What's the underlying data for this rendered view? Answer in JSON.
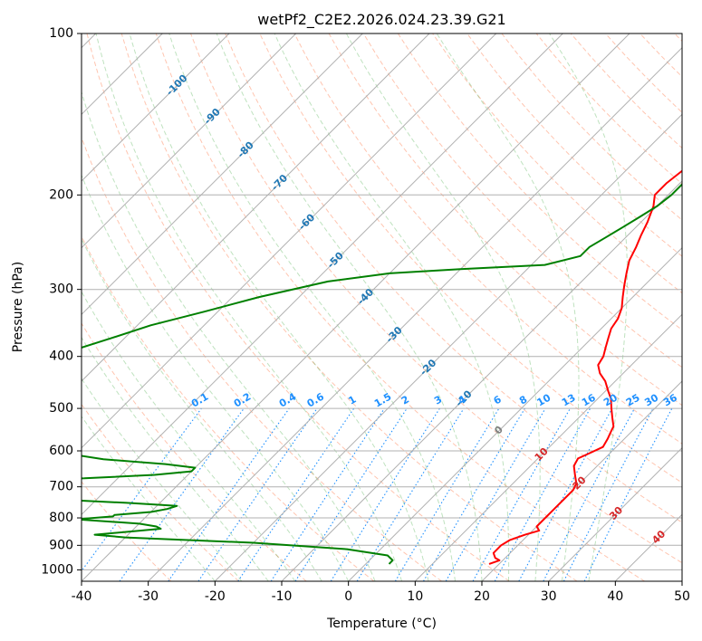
{
  "chart_data": {
    "type": "line",
    "title": "wetPf2_C2E2.2026.024.23.39.G21",
    "xlabel": "Temperature (°C)",
    "ylabel": "Pressure (hPa)",
    "xlim": [
      -40,
      50
    ],
    "ylim": [
      1050,
      100
    ],
    "y_scale": "log",
    "skew": "skew-T",
    "x_ticks": [
      -40,
      -30,
      -20,
      -10,
      0,
      10,
      20,
      30,
      40,
      50
    ],
    "y_ticks": [
      100,
      200,
      300,
      400,
      500,
      600,
      700,
      800,
      900,
      1000
    ],
    "grid": true,
    "isotherm_labels": [
      "-100",
      "-90",
      "-80",
      "-70",
      "-60",
      "-50",
      "-40",
      "-30",
      "-20",
      "-10",
      "0",
      "10",
      "20",
      "30",
      "40"
    ],
    "mixing_ratio_labels": [
      "0.1",
      "0.2",
      "0.4",
      "0.6",
      "1",
      "1.5",
      "2",
      "3",
      "4",
      "6",
      "8",
      "10",
      "13",
      "16",
      "20",
      "25",
      "30",
      "36"
    ],
    "colors": {
      "temperature": "#ff0000",
      "dewpoint": "#008000",
      "isotherm_label_cold": "#1f77b4",
      "isotherm_label_zero": "#808080",
      "isotherm_label_warm": "#d62728",
      "mixing_ratio": "#1e90ff",
      "dry_adiabat": "#ff7f50",
      "moist_adiabat": "#2ca02c",
      "grid": "#b0b0b0"
    },
    "series": [
      {
        "key": "temperature",
        "points": [
          [
            18.5,
            975
          ],
          [
            19.5,
            960
          ],
          [
            18.5,
            950
          ],
          [
            17.5,
            930
          ],
          [
            17.5,
            900
          ],
          [
            18,
            880
          ],
          [
            19.5,
            860
          ],
          [
            21,
            845
          ],
          [
            20,
            830
          ],
          [
            20,
            800
          ],
          [
            20,
            770
          ],
          [
            20,
            740
          ],
          [
            20,
            710
          ],
          [
            19.5,
            690
          ],
          [
            18,
            665
          ],
          [
            16.5,
            640
          ],
          [
            16,
            620
          ],
          [
            17,
            605
          ],
          [
            18,
            590
          ],
          [
            17.5,
            570
          ],
          [
            17,
            555
          ],
          [
            16.5,
            540
          ],
          [
            15,
            520
          ],
          [
            13.5,
            500
          ],
          [
            12,
            480
          ],
          [
            10.5,
            465
          ],
          [
            8.5,
            445
          ],
          [
            6.5,
            430
          ],
          [
            5,
            415
          ],
          [
            4.5,
            400
          ],
          [
            3.5,
            385
          ],
          [
            2.5,
            370
          ],
          [
            1.5,
            355
          ],
          [
            1,
            340
          ],
          [
            0,
            325
          ],
          [
            -1.5,
            310
          ],
          [
            -3,
            295
          ],
          [
            -4.5,
            280
          ],
          [
            -6,
            265
          ],
          [
            -7,
            250
          ],
          [
            -8,
            238
          ],
          [
            -9,
            225
          ],
          [
            -10.5,
            210
          ],
          [
            -12,
            200
          ],
          [
            -12,
            190
          ],
          [
            -11.5,
            180
          ],
          [
            -10.5,
            170
          ],
          [
            -9.5,
            160
          ],
          [
            -8.5,
            150
          ],
          [
            -8,
            140
          ],
          [
            -8,
            130
          ],
          [
            -8,
            122
          ],
          [
            -7.5,
            115
          ],
          [
            -6.5,
            108
          ],
          [
            -5,
            100
          ]
        ]
      },
      {
        "key": "dewpoint",
        "points": [
          [
            3.5,
            975
          ],
          [
            3.5,
            960
          ],
          [
            2,
            940
          ],
          [
            -5,
            915
          ],
          [
            -20,
            890
          ],
          [
            -40,
            870
          ],
          [
            -45,
            860
          ],
          [
            -40,
            848
          ],
          [
            -36,
            838
          ],
          [
            -37,
            830
          ],
          [
            -40,
            820
          ],
          [
            -50,
            805
          ],
          [
            -45,
            795
          ],
          [
            -45,
            790
          ],
          [
            -40,
            780
          ],
          [
            -38,
            770
          ],
          [
            -37,
            760
          ],
          [
            -45,
            750
          ],
          [
            -55,
            740
          ],
          [
            -60,
            730
          ],
          [
            -70,
            700
          ],
          [
            -80,
            690
          ],
          [
            -75,
            682
          ],
          [
            -55,
            675
          ],
          [
            -45,
            665
          ],
          [
            -40,
            655
          ],
          [
            -40,
            645
          ],
          [
            -45,
            635
          ],
          [
            -55,
            622
          ],
          [
            -60,
            610
          ],
          [
            -65,
            600
          ],
          [
            -70,
            580
          ],
          [
            -80,
            520
          ],
          [
            -85,
            470
          ],
          [
            -80,
            420
          ],
          [
            -76,
            390
          ],
          [
            -72,
            370
          ],
          [
            -68,
            350
          ],
          [
            -62,
            330
          ],
          [
            -56,
            310
          ],
          [
            -48,
            290
          ],
          [
            -40,
            280
          ],
          [
            -30,
            275
          ],
          [
            -18,
            270
          ],
          [
            -14,
            260
          ],
          [
            -14,
            250
          ],
          [
            -13,
            240
          ],
          [
            -12,
            230
          ],
          [
            -11,
            220
          ],
          [
            -10,
            210
          ],
          [
            -9.5,
            200
          ],
          [
            -9.5,
            190
          ],
          [
            -10,
            180
          ],
          [
            -10.5,
            170
          ],
          [
            -11,
            160
          ],
          [
            -10.5,
            150
          ],
          [
            -9.5,
            140
          ],
          [
            -8,
            130
          ],
          [
            -7,
            122
          ],
          [
            -6.5,
            116
          ],
          [
            -6,
            110
          ],
          [
            -5,
            105
          ],
          [
            -4,
            100
          ]
        ]
      }
    ]
  }
}
